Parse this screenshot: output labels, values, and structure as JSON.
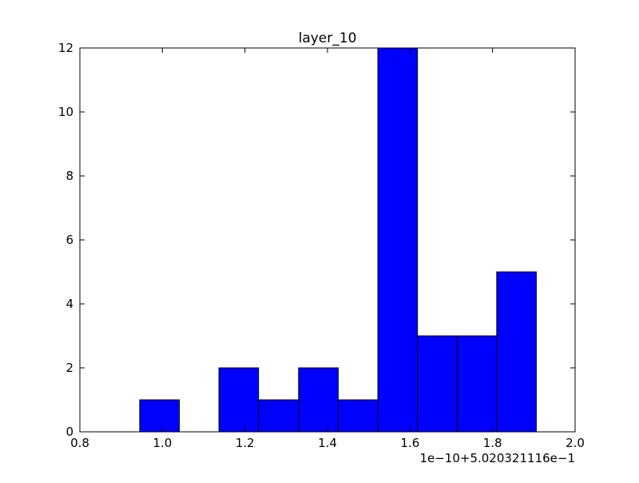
{
  "chart_data": {
    "type": "bar",
    "title": "layer_10",
    "xlabel": "",
    "ylabel": "",
    "x_offset_label": "1e−10+5.020321116e−1",
    "xlim": [
      0.8,
      2.0
    ],
    "ylim": [
      0,
      12
    ],
    "x_ticks": [
      0.8,
      1.0,
      1.2,
      1.4,
      1.6,
      1.8,
      2.0
    ],
    "x_tick_labels": [
      "0.8",
      "1.0",
      "1.2",
      "1.4",
      "1.6",
      "1.8",
      "2.0"
    ],
    "y_ticks": [
      0,
      2,
      4,
      6,
      8,
      10,
      12
    ],
    "y_tick_labels": [
      "0",
      "2",
      "4",
      "6",
      "8",
      "10",
      "12"
    ],
    "bin_edges": [
      0.945,
      1.041,
      1.137,
      1.233,
      1.33,
      1.426,
      1.522,
      1.618,
      1.714,
      1.81,
      1.906
    ],
    "values": [
      1,
      0,
      2,
      1,
      2,
      1,
      12,
      3,
      3,
      5
    ],
    "bar_color": "#0000ff",
    "edge_color": "#000000",
    "grid": false,
    "legend": "none"
  }
}
